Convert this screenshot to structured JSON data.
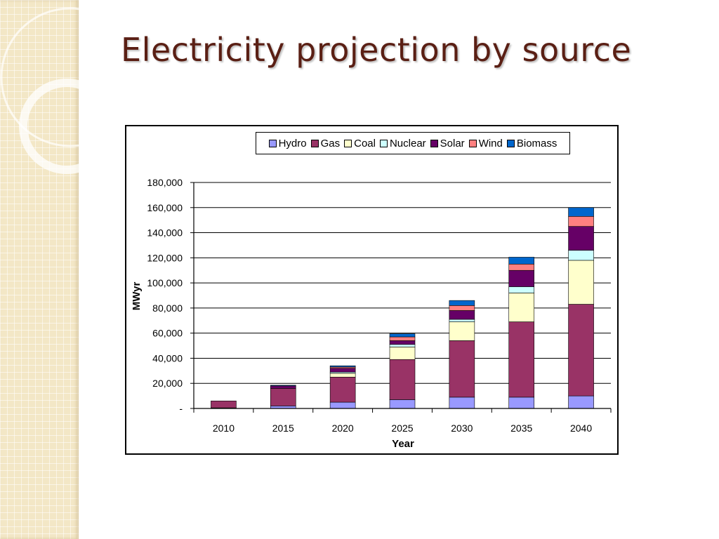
{
  "slide": {
    "title": "Electricity projection by source"
  },
  "chart_data": {
    "type": "bar",
    "stacked": true,
    "categories": [
      "2010",
      "2015",
      "2020",
      "2025",
      "2030",
      "2035",
      "2040"
    ],
    "xlabel": "Year",
    "ylabel": "MWyr",
    "ylim": [
      0,
      180000
    ],
    "y_ticks": [
      0,
      20000,
      40000,
      60000,
      80000,
      100000,
      120000,
      140000,
      160000,
      180000
    ],
    "y_tick_labels": [
      "-",
      "20,000",
      "40,000",
      "60,000",
      "80,000",
      "100,000",
      "120,000",
      "140,000",
      "160,000",
      "180,000"
    ],
    "grid": true,
    "legend_position": "top",
    "series": [
      {
        "name": "Hydro",
        "color": "#9999ff",
        "values": [
          500,
          2000,
          5000,
          7000,
          9000,
          9000,
          10000
        ]
      },
      {
        "name": "Gas",
        "color": "#993366",
        "values": [
          5500,
          14000,
          20000,
          32000,
          45000,
          60000,
          73000
        ]
      },
      {
        "name": "Coal",
        "color": "#ffffcc",
        "values": [
          0,
          0,
          3000,
          10000,
          15000,
          23000,
          35000
        ]
      },
      {
        "name": "Nuclear",
        "color": "#ccffff",
        "values": [
          0,
          0,
          1000,
          2000,
          2000,
          5000,
          8000
        ]
      },
      {
        "name": "Solar",
        "color": "#660066",
        "values": [
          0,
          2000,
          3000,
          3000,
          7000,
          13000,
          19000
        ]
      },
      {
        "name": "Wind",
        "color": "#ff8080",
        "values": [
          0,
          0,
          1000,
          3000,
          4000,
          5000,
          8000
        ]
      },
      {
        "name": "Biomass",
        "color": "#0066cc",
        "values": [
          0,
          500,
          1000,
          2500,
          4000,
          5500,
          7000
        ]
      }
    ]
  }
}
